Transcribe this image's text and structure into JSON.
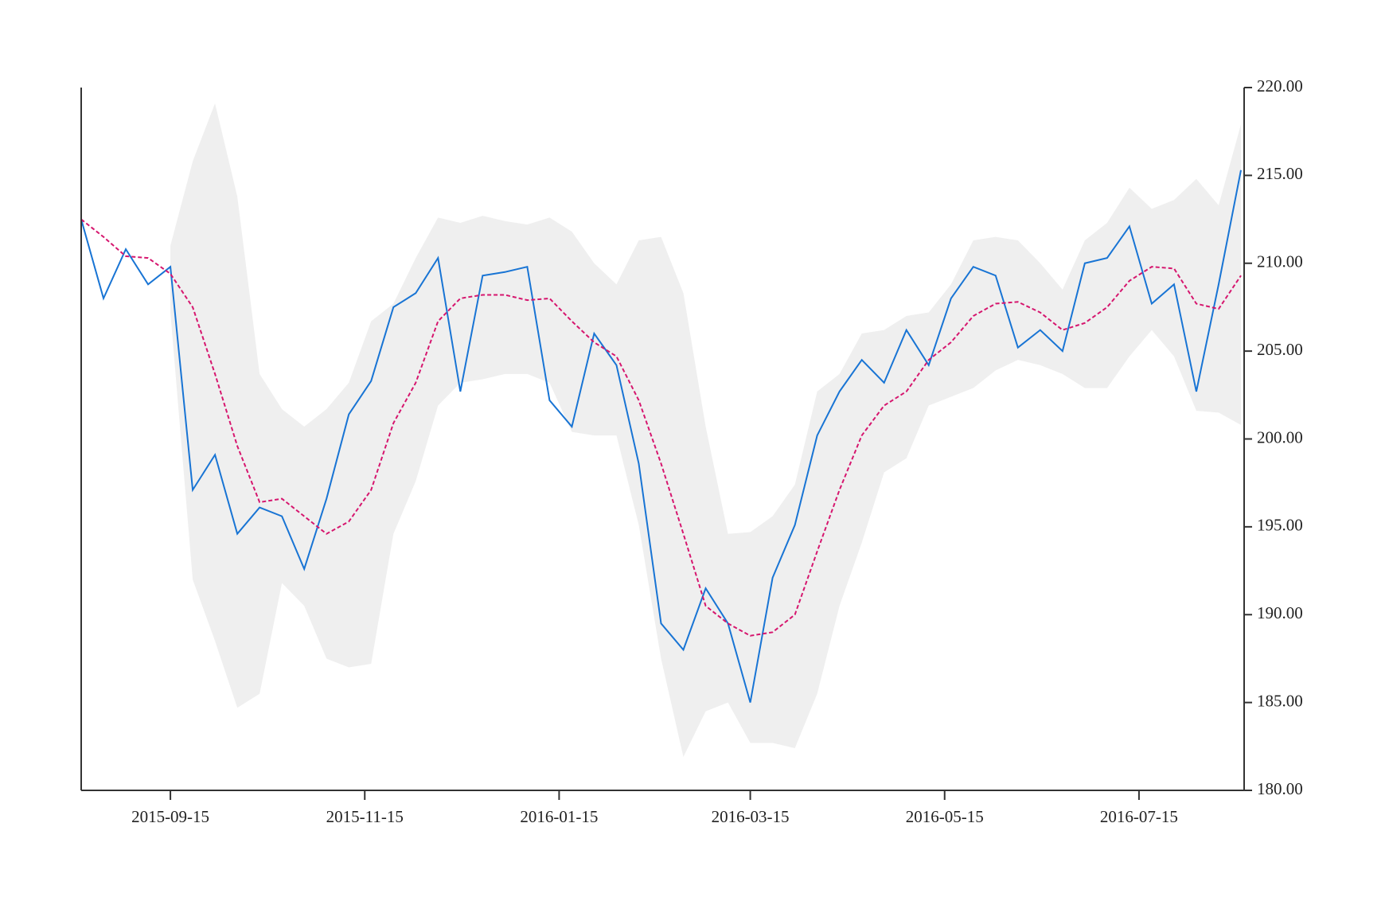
{
  "chart_data": {
    "type": "line",
    "x": [
      "2015-08-18",
      "2015-08-25",
      "2015-09-01",
      "2015-09-08",
      "2015-09-15",
      "2015-09-22",
      "2015-09-29",
      "2015-10-06",
      "2015-10-13",
      "2015-10-20",
      "2015-10-27",
      "2015-11-03",
      "2015-11-10",
      "2015-11-17",
      "2015-11-24",
      "2015-12-01",
      "2015-12-08",
      "2015-12-15",
      "2015-12-22",
      "2015-12-29",
      "2016-01-05",
      "2016-01-12",
      "2016-01-19",
      "2016-01-26",
      "2016-02-02",
      "2016-02-09",
      "2016-02-16",
      "2016-02-23",
      "2016-03-01",
      "2016-03-08",
      "2016-03-15",
      "2016-03-22",
      "2016-03-29",
      "2016-04-05",
      "2016-04-12",
      "2016-04-19",
      "2016-04-26",
      "2016-05-03",
      "2016-05-10",
      "2016-05-17",
      "2016-05-24",
      "2016-05-31",
      "2016-06-07",
      "2016-06-14",
      "2016-06-21",
      "2016-06-28",
      "2016-07-05",
      "2016-07-12",
      "2016-07-19",
      "2016-07-26",
      "2016-08-02",
      "2016-08-09",
      "2016-08-16"
    ],
    "values": [
      212.5,
      208.0,
      210.8,
      208.8,
      209.8,
      197.1,
      199.1,
      194.6,
      196.1,
      195.6,
      192.6,
      196.6,
      201.4,
      203.3,
      207.5,
      208.3,
      210.3,
      202.7,
      209.3,
      209.5,
      209.8,
      202.2,
      200.7,
      206.0,
      204.2,
      198.6,
      189.5,
      188.0,
      191.5,
      189.5,
      185.0,
      192.1,
      195.1,
      200.2,
      202.7,
      204.5,
      203.2,
      206.2,
      204.2,
      208.0,
      209.8,
      209.3,
      205.2,
      206.2,
      205.0,
      210.0,
      210.3,
      212.1,
      207.7,
      208.8,
      202.7,
      208.8,
      215.3
    ],
    "color": "#1874d4",
    "ma_values": [
      212.5,
      211.5,
      210.4,
      210.3,
      209.4,
      207.5,
      203.7,
      199.6,
      196.4,
      196.6,
      195.6,
      194.6,
      195.3,
      197.1,
      200.9,
      203.2,
      206.7,
      208.0,
      208.2,
      208.2,
      207.9,
      208.0,
      206.7,
      205.5,
      204.7,
      202.2,
      198.6,
      194.6,
      190.5,
      189.5,
      188.8,
      189.0,
      190.0,
      193.6,
      197.1,
      200.2,
      201.9,
      202.7,
      204.5,
      205.5,
      207.0,
      207.7,
      207.8,
      207.2,
      206.2,
      206.6,
      207.5,
      209.0,
      209.8,
      209.7,
      207.7,
      207.4,
      209.3
    ],
    "ma_color": "#d6166e",
    "band_upper": [
      null,
      null,
      null,
      null,
      211.0,
      215.8,
      219.1,
      213.8,
      203.7,
      201.7,
      200.7,
      201.7,
      203.2,
      206.7,
      207.7,
      210.3,
      212.6,
      212.3,
      212.7,
      212.4,
      212.2,
      212.6,
      211.8,
      210.0,
      208.8,
      211.3,
      211.5,
      208.3,
      200.7,
      194.6,
      194.7,
      195.6,
      197.4,
      202.7,
      203.7,
      206.0,
      206.2,
      207.0,
      207.2,
      208.8,
      211.3,
      211.5,
      211.3,
      210.0,
      208.5,
      211.3,
      212.3,
      214.3,
      213.1,
      213.6,
      214.8,
      213.3,
      217.9
    ],
    "band_lower": [
      null,
      null,
      null,
      null,
      207.2,
      192.0,
      188.5,
      184.7,
      185.5,
      191.8,
      190.5,
      187.5,
      187.0,
      187.2,
      194.6,
      197.6,
      201.9,
      203.2,
      203.4,
      203.7,
      203.7,
      203.2,
      200.4,
      200.2,
      200.2,
      195.1,
      187.5,
      181.9,
      184.5,
      185.0,
      182.7,
      182.7,
      182.4,
      185.5,
      190.5,
      194.1,
      198.1,
      198.9,
      201.9,
      202.4,
      202.9,
      203.9,
      204.5,
      204.2,
      203.7,
      202.9,
      202.9,
      204.7,
      206.2,
      204.7,
      201.6,
      201.5,
      200.8
    ],
    "band_color": "#efefef",
    "xlim": [
      "2015-08-18",
      "2016-08-17"
    ],
    "xticks": [
      "2015-09-15",
      "2015-11-15",
      "2016-01-15",
      "2016-03-15",
      "2016-05-15",
      "2016-07-15"
    ],
    "ylim": [
      180,
      220
    ],
    "yticks": [
      {
        "value": 180,
        "label": "180.00"
      },
      {
        "value": 185,
        "label": "185.00"
      },
      {
        "value": 190,
        "label": "190.00"
      },
      {
        "value": 195,
        "label": "195.00"
      },
      {
        "value": 200,
        "label": "200.00"
      },
      {
        "value": 205,
        "label": "205.00"
      },
      {
        "value": 210,
        "label": "210.00"
      },
      {
        "value": 215,
        "label": "215.00"
      },
      {
        "value": 220,
        "label": "220.00"
      }
    ],
    "y_axis_side": "right",
    "grid": false
  }
}
